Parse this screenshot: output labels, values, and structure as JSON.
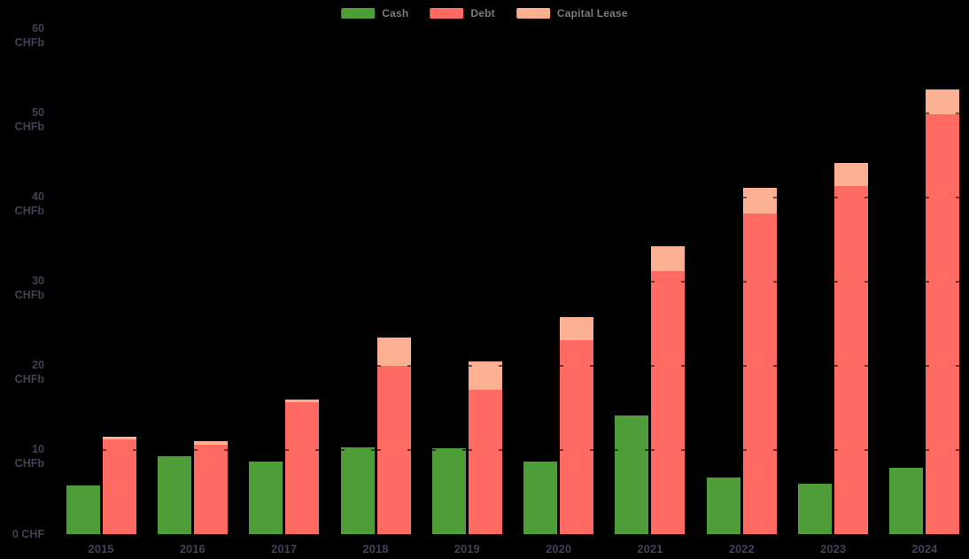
{
  "page": {
    "background": "#000000",
    "axis_label_color": "#3e4254",
    "legend_text_color": "#7b7b7b"
  },
  "chart_data": {
    "type": "bar",
    "title": "",
    "xlabel": "",
    "ylabel": "",
    "unit": "CHF billions",
    "categories": [
      "2015",
      "2016",
      "2017",
      "2018",
      "2019",
      "2020",
      "2021",
      "2022",
      "2023",
      "2024"
    ],
    "series": [
      {
        "name": "Cash",
        "color": "#4f9d39",
        "stack": "cash",
        "values": [
          5.8,
          9.3,
          8.6,
          10.3,
          10.2,
          8.6,
          14.1,
          6.7,
          6.0,
          7.9
        ]
      },
      {
        "name": "Debt",
        "color": "#ff6a63",
        "stack": "debt",
        "values": [
          11.3,
          10.6,
          15.7,
          20.0,
          17.1,
          23.0,
          31.2,
          38.1,
          41.3,
          49.8
        ]
      },
      {
        "name": "Capital Lease",
        "color": "#fcb092",
        "stack": "debt",
        "values": [
          0.3,
          0.4,
          0.3,
          3.3,
          3.4,
          2.8,
          3.0,
          3.0,
          2.8,
          3.0
        ]
      }
    ],
    "layout_hint": "two bars per year: Cash alone; Debt with Capital Lease stacked on top",
    "yticks": [
      {
        "value": 0,
        "label": "0 CHF"
      },
      {
        "value": 10,
        "label": "10 CHFb"
      },
      {
        "value": 20,
        "label": "20 CHFb"
      },
      {
        "value": 30,
        "label": "30 CHFb"
      },
      {
        "value": 40,
        "label": "40 CHFb"
      },
      {
        "value": 50,
        "label": "50 CHFb"
      },
      {
        "value": 60,
        "label": "60 CHFb"
      }
    ],
    "ylim": [
      0,
      63
    ],
    "grid": "tick nubs at bar edges every 10 CHFb",
    "legend_position": "top-center"
  }
}
